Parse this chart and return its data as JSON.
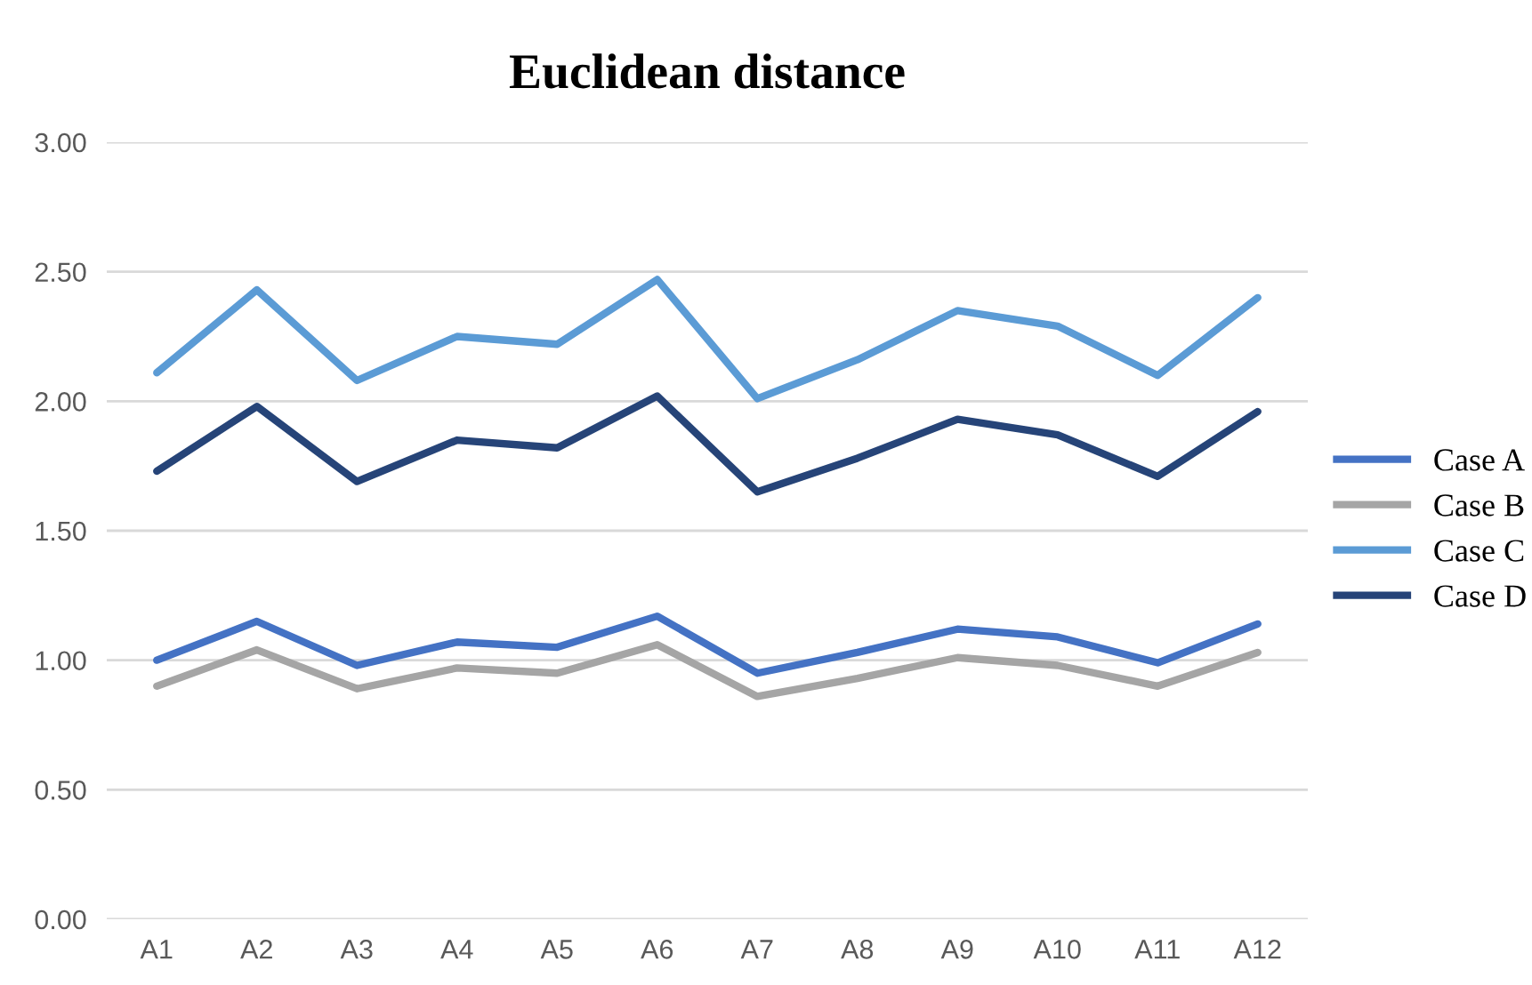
{
  "chart_data": {
    "type": "line",
    "title": "Euclidean distance",
    "categories": [
      "A1",
      "A2",
      "A3",
      "A4",
      "A5",
      "A6",
      "A7",
      "A8",
      "A9",
      "A10",
      "A11",
      "A12"
    ],
    "series": [
      {
        "name": "Case A",
        "color": "#4472c4",
        "values": [
          1.0,
          1.15,
          0.98,
          1.07,
          1.05,
          1.17,
          0.95,
          1.03,
          1.12,
          1.09,
          0.99,
          1.14
        ]
      },
      {
        "name": "Case B",
        "color": "#a5a5a5",
        "values": [
          0.9,
          1.04,
          0.89,
          0.97,
          0.95,
          1.06,
          0.86,
          0.93,
          1.01,
          0.98,
          0.9,
          1.03
        ]
      },
      {
        "name": "Case C",
        "color": "#5b9bd5",
        "values": [
          2.11,
          2.43,
          2.08,
          2.25,
          2.22,
          2.47,
          2.01,
          2.16,
          2.35,
          2.29,
          2.1,
          2.4
        ]
      },
      {
        "name": "Case D",
        "color": "#264478",
        "values": [
          1.73,
          1.98,
          1.69,
          1.85,
          1.82,
          2.02,
          1.65,
          1.78,
          1.93,
          1.87,
          1.71,
          1.96
        ]
      }
    ],
    "ylim": [
      0,
      3
    ],
    "yticks": [
      {
        "value": 0,
        "label": "0.00"
      },
      {
        "value": 0.5,
        "label": "0.50"
      },
      {
        "value": 1,
        "label": "1.00"
      },
      {
        "value": 1.5,
        "label": "1.50"
      },
      {
        "value": 2,
        "label": "2.00"
      },
      {
        "value": 2.5,
        "label": "2.50"
      },
      {
        "value": 3,
        "label": "3.00"
      }
    ],
    "grid": "y",
    "legend": "right",
    "marker": "none",
    "line_style": "solid"
  }
}
